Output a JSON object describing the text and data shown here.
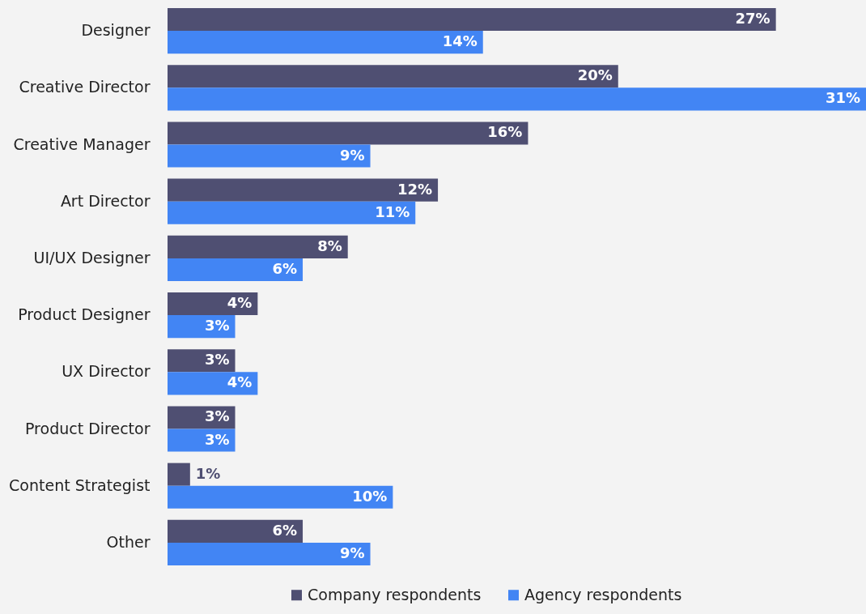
{
  "chart_data": {
    "type": "bar",
    "orientation": "horizontal",
    "categories": [
      "Designer",
      "Creative Director",
      "Creative Manager",
      "Art Director",
      "UI/UX Designer",
      "Product Designer",
      "UX Director",
      "Product Director",
      "Content Strategist",
      "Other"
    ],
    "series": [
      {
        "name": "Company respondents",
        "color": "#4f4f72",
        "values": [
          27,
          20,
          16,
          12,
          8,
          4,
          3,
          3,
          1,
          6
        ],
        "value_labels": [
          "27%",
          "20%",
          "16%",
          "12%",
          "8%",
          "4%",
          "3%",
          "3%",
          "1%",
          "6%"
        ]
      },
      {
        "name": "Agency respondents",
        "color": "#4285f4",
        "values": [
          14,
          31,
          9,
          11,
          6,
          3,
          4,
          3,
          10,
          9
        ],
        "value_labels": [
          "14%",
          "31%",
          "9%",
          "11%",
          "6%",
          "3%",
          "4%",
          "3%",
          "10%",
          "9%"
        ]
      }
    ],
    "legend": "bottom"
  }
}
